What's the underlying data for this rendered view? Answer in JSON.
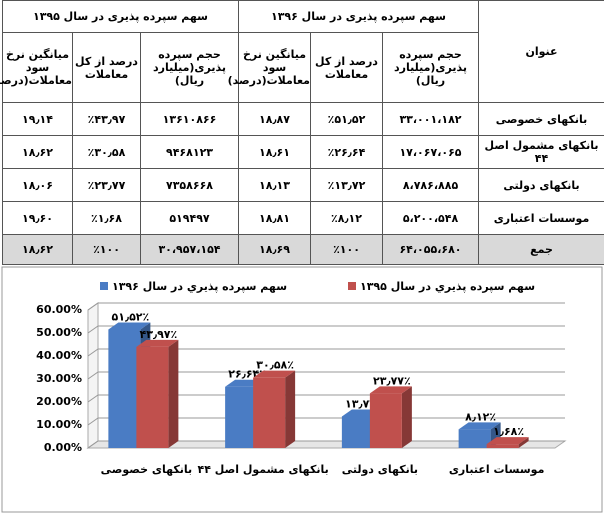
{
  "table": {
    "title_col": "عنوان",
    "groups": [
      {
        "title": "سهم سپرده پذیری در سال ۱۳۹۶",
        "columns": [
          "حجم سپرده پذیری(میلیارد ریال)",
          "درصد از کل معاملات",
          "میانگین نرخ سود معاملات(درصد)"
        ]
      },
      {
        "title": "سهم سپرده پذیری در سال ۱۳۹۵",
        "columns": [
          "حجم سپرده پذیری(میلیارد ریال)",
          "درصد از کل معاملات",
          "میانگین نرخ سود معاملات(درصد)"
        ]
      }
    ],
    "rows": [
      [
        "بانکهای خصوصی",
        "۳۳،۰۰۱،۱۸۲",
        "٪۵۱٫۵۲",
        "۱۸٫۸۷",
        "۱۳۶۱۰۸۶۶",
        "٪۴۳٫۹۷",
        "۱۹٫۱۴"
      ],
      [
        "بانکهای مشمول اصل ۴۴",
        "۱۷،۰۶۷،۰۶۵",
        "٪۲۶٫۶۴",
        "۱۸٫۶۱",
        "۹۴۶۸۱۲۳",
        "٪۳۰٫۵۸",
        "۱۸٫۶۲"
      ],
      [
        "بانکهای دولتی",
        "۸،۷۸۶،۸۸۵",
        "٪۱۳٫۷۲",
        "۱۸٫۱۳",
        "۷۳۵۸۶۶۸",
        "٪۲۳٫۷۷",
        "۱۸٫۰۶"
      ],
      [
        "موسسات اعتباری",
        "۵،۲۰۰،۵۴۸",
        "٪۸٫۱۲",
        "۱۸٫۸۱",
        "۵۱۹۴۹۷",
        "٪۱٫۶۸",
        "۱۹٫۶۰"
      ],
      [
        "جمع",
        "۶۴،۰۵۵،۶۸۰",
        "٪۱۰۰",
        "۱۸٫۶۹",
        "۳۰،۹۵۷،۱۵۴",
        "٪۱۰۰",
        "۱۸٫۶۲"
      ]
    ]
  },
  "chart_data": {
    "type": "bar",
    "categories": [
      "بانکهای خصوصی",
      "بانکهای مشمول اصل ۴۴",
      "بانکهای دولتی",
      "موسسات اعتباری"
    ],
    "series": [
      {
        "name": "سهم سپرده پذيري در سال ۱۳۹۶",
        "color": "#4a7cc4",
        "values": [
          51.52,
          26.64,
          13.72,
          8.12
        ],
        "value_labels": [
          "۵۱٫۵۲٪",
          "۲۶٫۶۴٪",
          "۱۳٫۷۲٪",
          "۸٫۱۲٪"
        ]
      },
      {
        "name": "سهم سپرده پذيري در سال ۱۳۹۵",
        "color": "#c0504d",
        "values": [
          43.97,
          30.58,
          23.77,
          1.68
        ],
        "value_labels": [
          "۴۳٫۹۷٪",
          "۳۰٫۵۸٪",
          "۲۳٫۷۷٪",
          "۱٫۶۸٪"
        ]
      }
    ],
    "ylim": [
      0,
      60
    ],
    "yticks": [
      {
        "value": 0,
        "label": "0.00%"
      },
      {
        "value": 10,
        "label": "10.00%"
      },
      {
        "value": 20,
        "label": "20.00%"
      },
      {
        "value": 30,
        "label": "30.00%"
      },
      {
        "value": 40,
        "label": "40.00%"
      },
      {
        "value": 50,
        "label": "50.00%"
      },
      {
        "value": 60,
        "label": "60.00%"
      }
    ],
    "grid": true
  }
}
